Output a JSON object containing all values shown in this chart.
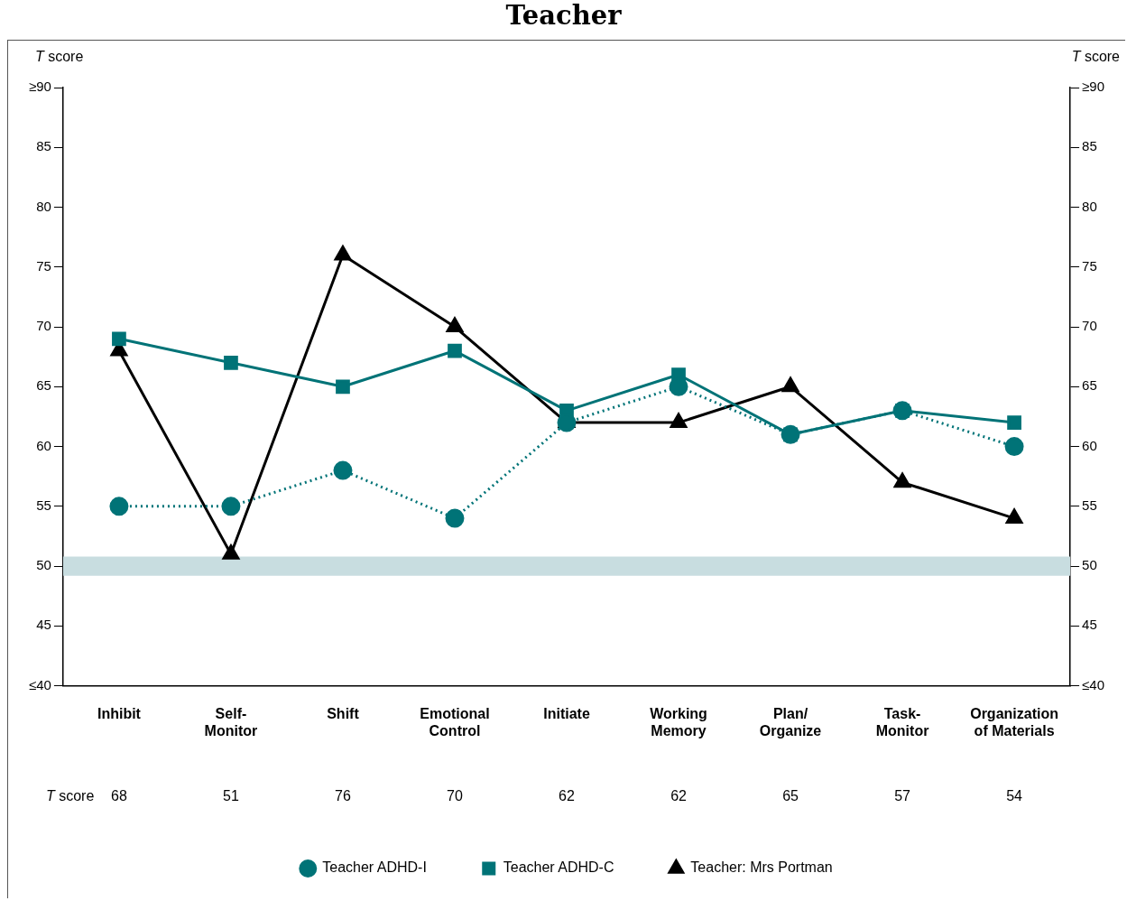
{
  "chart_data": {
    "type": "line",
    "title": "Teacher",
    "ylabel": "T score",
    "y2label": "T score",
    "categories": [
      "Inhibit",
      "Self-Monitor",
      "Shift",
      "Emotional Control",
      "Initiate",
      "Working Memory",
      "Plan/Organize",
      "Task-Monitor",
      "Organization of Materials"
    ],
    "series": [
      {
        "name": "Teacher ADHD-I",
        "color": "#007377",
        "marker": "circle",
        "line_style": "dotted",
        "values": [
          55,
          55,
          58,
          54,
          62,
          65,
          61,
          63,
          60
        ]
      },
      {
        "name": "Teacher ADHD-C",
        "color": "#007377",
        "marker": "square",
        "line_style": "solid",
        "values": [
          69,
          67,
          65,
          68,
          63,
          66,
          61,
          63,
          62
        ]
      },
      {
        "name": "Teacher: Mrs Portman",
        "color": "#000000",
        "marker": "triangle",
        "line_style": "solid",
        "values": [
          68,
          51,
          76,
          70,
          62,
          62,
          65,
          57,
          54
        ],
        "value_labels": [
          "68",
          "51",
          "76",
          "70",
          "62",
          "62",
          "65",
          "57",
          "54"
        ]
      }
    ],
    "ylim": [
      40,
      90
    ],
    "yticks": [
      {
        "value": 40,
        "label": "≤40"
      },
      45,
      50,
      55,
      60,
      65,
      70,
      75,
      80,
      85,
      {
        "value": 90,
        "label": "≥90"
      }
    ],
    "y2lim": [
      40,
      90
    ],
    "y2ticks": [
      {
        "value": 40,
        "label": "≤40"
      },
      45,
      50,
      55,
      60,
      65,
      70,
      75,
      80,
      85,
      {
        "value": 90,
        "label": "≥90"
      }
    ],
    "bands": [
      {
        "axis": "y",
        "from": 49.2,
        "to": 50.8,
        "color": "#c8dde0"
      }
    ],
    "annotations": [
      "T score"
    ],
    "grid": false,
    "legend": "bottom"
  }
}
